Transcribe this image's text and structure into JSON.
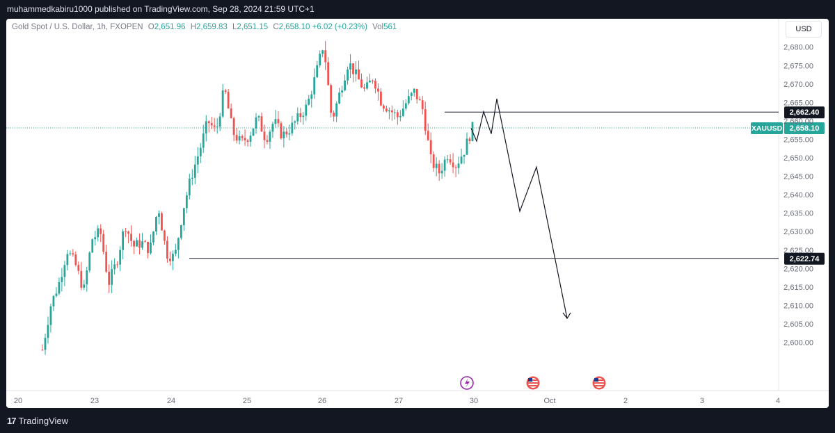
{
  "header": {
    "published": "muhammedkabiru1000 published on TradingView.com, Sep 28, 2024 21:59 UTC+1"
  },
  "legend": {
    "symbol": "Gold Spot / U.S. Dollar, 1h, FXOPEN",
    "o_label": "O",
    "o_value": "2,651.96",
    "h_label": "H",
    "h_value": "2,659.83",
    "l_label": "L",
    "l_value": "2,651.15",
    "c_label": "C",
    "c_value": "2,658.10",
    "change": "+6.02 (+0.23%)",
    "vol_label": "Vol",
    "vol_value": "561"
  },
  "currency_button": "USD",
  "footer": {
    "brand": "TradingView"
  },
  "colors": {
    "up": "#26a69a",
    "down": "#ef5350",
    "background": "#ffffff",
    "frame": "#131722"
  },
  "chart_data": {
    "type": "candlestick",
    "y_axis": {
      "ticks": [
        "2,600.00",
        "2,605.00",
        "2,610.00",
        "2,615.00",
        "2,620.00",
        "2,625.00",
        "2,630.00",
        "2,635.00",
        "2,640.00",
        "2,645.00",
        "2,650.00",
        "2,655.00",
        "2,660.00",
        "2,665.00",
        "2,670.00",
        "2,675.00",
        "2,680.00"
      ],
      "range": [
        2597,
        2684
      ]
    },
    "x_axis": {
      "ticks": [
        "20",
        "23",
        "24",
        "25",
        "26",
        "27",
        "30",
        "Oct",
        "2",
        "3",
        "4"
      ]
    },
    "price_labels": [
      {
        "name": "resistance",
        "value": 2662.4,
        "text": "2,662.40"
      },
      {
        "name": "current",
        "value": 2658.1,
        "text": "2,658.10",
        "symbol": "XAUUSD"
      },
      {
        "name": "support",
        "value": 2622.74,
        "text": "2,622.74"
      }
    ],
    "drawn_path_prices": [
      2658.0,
      2654.5,
      2662.5,
      2656.5,
      2666.0,
      2635.5,
      2647.5,
      2606.5
    ],
    "events": [
      "flash-event",
      "us-flag-event",
      "us-flag-event"
    ],
    "anchors": [
      {
        "day": "20",
        "value": 2598
      },
      {
        "day": "20",
        "value": 2610
      },
      {
        "day": "20",
        "value": 2616
      },
      {
        "day": "20",
        "value": 2625
      },
      {
        "day": "20",
        "value": 2621
      },
      {
        "day": "23",
        "value": 2614
      },
      {
        "day": "23",
        "value": 2628
      },
      {
        "day": "23",
        "value": 2630
      },
      {
        "day": "23",
        "value": 2616
      },
      {
        "day": "23",
        "value": 2622
      },
      {
        "day": "23",
        "value": 2632
      },
      {
        "day": "24",
        "value": 2626
      },
      {
        "day": "24",
        "value": 2627
      },
      {
        "day": "24",
        "value": 2625
      },
      {
        "day": "24",
        "value": 2637
      },
      {
        "day": "24",
        "value": 2624
      },
      {
        "day": "24",
        "value": 2623
      },
      {
        "day": "24",
        "value": 2636
      },
      {
        "day": "24",
        "value": 2645
      },
      {
        "day": "25",
        "value": 2652
      },
      {
        "day": "25",
        "value": 2660
      },
      {
        "day": "25",
        "value": 2657
      },
      {
        "day": "25",
        "value": 2669
      },
      {
        "day": "25",
        "value": 2657
      },
      {
        "day": "25",
        "value": 2654
      },
      {
        "day": "25",
        "value": 2656
      },
      {
        "day": "26",
        "value": 2661
      },
      {
        "day": "26",
        "value": 2655
      },
      {
        "day": "26",
        "value": 2660
      },
      {
        "day": "26",
        "value": 2656
      },
      {
        "day": "26",
        "value": 2658
      },
      {
        "day": "26",
        "value": 2661
      },
      {
        "day": "26",
        "value": 2664
      },
      {
        "day": "26",
        "value": 2672
      },
      {
        "day": "26",
        "value": 2681
      },
      {
        "day": "26",
        "value": 2660
      },
      {
        "day": "26",
        "value": 2668
      },
      {
        "day": "27",
        "value": 2676
      },
      {
        "day": "27",
        "value": 2672
      },
      {
        "day": "27",
        "value": 2668
      },
      {
        "day": "27",
        "value": 2672
      },
      {
        "day": "27",
        "value": 2665
      },
      {
        "day": "27",
        "value": 2663
      },
      {
        "day": "27",
        "value": 2661
      },
      {
        "day": "27",
        "value": 2665
      },
      {
        "day": "27",
        "value": 2668
      },
      {
        "day": "27",
        "value": 2663
      },
      {
        "day": "27",
        "value": 2649
      },
      {
        "day": "27",
        "value": 2646
      },
      {
        "day": "27",
        "value": 2651
      },
      {
        "day": "27",
        "value": 2648
      },
      {
        "day": "30",
        "value": 2652
      },
      {
        "day": "30",
        "value": 2658.1
      }
    ]
  }
}
